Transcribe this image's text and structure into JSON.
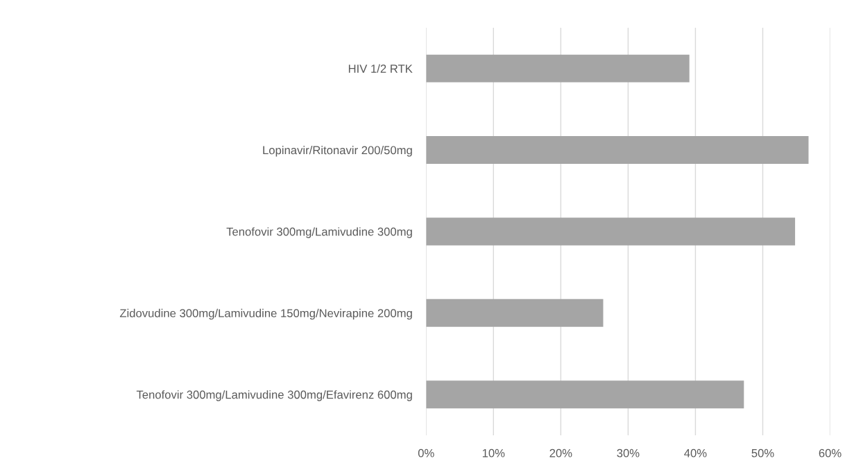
{
  "chart_data": {
    "type": "bar",
    "orientation": "horizontal",
    "categories": [
      "HIV 1/2 RTK",
      "Lopinavir/Ritonavir 200/50mg",
      "Tenofovir 300mg/Lamivudine 300mg",
      "Zidovudine 300mg/Lamivudine 150mg/Nevirapine 200mg",
      "Tenofovir 300mg/Lamivudine 300mg/Efavirenz 600mg"
    ],
    "values": [
      39.1,
      56.8,
      54.8,
      26.3,
      47.2
    ],
    "color": "#a5a5a5",
    "xlim": [
      0,
      60
    ],
    "xticks": [
      {
        "value": 0,
        "label": "0%"
      },
      {
        "value": 10,
        "label": "10%"
      },
      {
        "value": 20,
        "label": "20%"
      },
      {
        "value": 30,
        "label": "30%"
      },
      {
        "value": 40,
        "label": "40%"
      },
      {
        "value": 50,
        "label": "50%"
      },
      {
        "value": 60,
        "label": "60%"
      }
    ],
    "grid": "x",
    "legend": false
  }
}
